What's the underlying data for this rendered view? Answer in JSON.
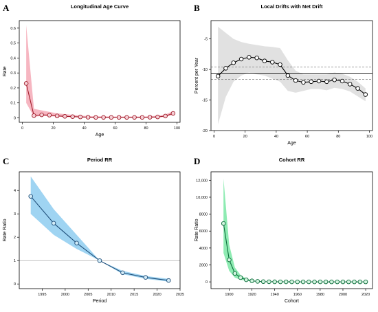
{
  "chart_data": [
    {
      "panel": "A",
      "type": "line",
      "title": "Longitudinal Age Curve",
      "xlabel": "Age",
      "ylabel": "Rate",
      "xlim": [
        -2,
        102
      ],
      "ylim": [
        -0.03,
        0.65
      ],
      "xticks": [
        0,
        20,
        40,
        60,
        80,
        100
      ],
      "yticks": [
        0.0,
        0.1,
        0.2,
        0.3,
        0.4,
        0.5,
        0.6
      ],
      "x": [
        2.5,
        7.5,
        12.5,
        17.5,
        22.5,
        27.5,
        32.5,
        37.5,
        42.5,
        47.5,
        52.5,
        57.5,
        62.5,
        67.5,
        72.5,
        77.5,
        82.5,
        87.5,
        92.5,
        97.5
      ],
      "y": [
        0.23,
        0.015,
        0.02,
        0.018,
        0.013,
        0.01,
        0.008,
        0.006,
        0.004,
        0.003,
        0.003,
        0.003,
        0.003,
        0.003,
        0.003,
        0.003,
        0.004,
        0.006,
        0.012,
        0.03
      ],
      "ci_low": [
        0.1,
        0.008,
        0.012,
        0.011,
        0.008,
        0.006,
        0.005,
        0.003,
        0.002,
        0.001,
        0.001,
        0.001,
        0.001,
        0.001,
        0.001,
        0.001,
        0.002,
        0.003,
        0.007,
        0.02
      ],
      "ci_high": [
        0.62,
        0.06,
        0.05,
        0.04,
        0.03,
        0.025,
        0.02,
        0.015,
        0.012,
        0.01,
        0.01,
        0.009,
        0.009,
        0.009,
        0.009,
        0.009,
        0.011,
        0.014,
        0.022,
        0.045
      ],
      "line_color": "#a01c2a",
      "band_color": "#f4a9b6",
      "marker_fill": "#f6d0d6"
    },
    {
      "panel": "B",
      "type": "line",
      "title": "Local Drifts with Net Drift",
      "xlabel": "Age",
      "ylabel": "Percent per Year",
      "xlim": [
        -2,
        102
      ],
      "ylim": [
        -20,
        -2
      ],
      "xticks": [
        0,
        20,
        40,
        60,
        80,
        100
      ],
      "yticks": [
        -20,
        -15,
        -10,
        -5
      ],
      "x": [
        2.5,
        7.5,
        12.5,
        17.5,
        22.5,
        27.5,
        32.5,
        37.5,
        42.5,
        47.5,
        52.5,
        57.5,
        62.5,
        67.5,
        72.5,
        77.5,
        82.5,
        87.5,
        92.5,
        97.5
      ],
      "y": [
        -11.1,
        -9.8,
        -8.9,
        -8.3,
        -8.0,
        -8.1,
        -8.6,
        -8.8,
        -9.2,
        -11.0,
        -11.8,
        -12.1,
        -12.0,
        -11.9,
        -12.0,
        -11.7,
        -11.9,
        -12.4,
        -13.1,
        -14.1
      ],
      "ci_low": [
        -19.0,
        -14.5,
        -12.0,
        -11.0,
        -10.5,
        -10.8,
        -11.0,
        -11.5,
        -12.0,
        -13.5,
        -13.8,
        -13.5,
        -13.2,
        -13.2,
        -13.4,
        -13.0,
        -13.2,
        -13.6,
        -14.4,
        -15.2
      ],
      "ci_high": [
        -3.0,
        -4.0,
        -5.0,
        -5.5,
        -5.8,
        -6.0,
        -6.2,
        -6.3,
        -6.5,
        -8.5,
        -10.2,
        -10.8,
        -10.8,
        -10.8,
        -10.8,
        -10.5,
        -10.7,
        -11.2,
        -12.0,
        -13.1
      ],
      "net_drift": -10.6,
      "net_drift_ci": [
        -11.6,
        -9.6
      ],
      "line_color": "#000000",
      "band_color": "#dcdcdc",
      "marker_fill": "#ffffff"
    },
    {
      "panel": "C",
      "type": "line",
      "title": "Period RR",
      "xlabel": "Period",
      "ylabel": "Rate Ratio",
      "xlim": [
        1990,
        2025
      ],
      "ylim": [
        -0.2,
        4.8
      ],
      "xticks": [
        1995,
        2000,
        2005,
        2010,
        2015,
        2020,
        2025
      ],
      "yticks": [
        0,
        1,
        2,
        3,
        4
      ],
      "x": [
        1992.5,
        1997.5,
        2002.5,
        2007.5,
        2012.5,
        2017.5,
        2022.5
      ],
      "y": [
        3.75,
        2.6,
        1.75,
        1.0,
        0.48,
        0.28,
        0.15
      ],
      "ci_low": [
        3.0,
        2.1,
        1.5,
        1.0,
        0.42,
        0.22,
        0.1
      ],
      "ci_high": [
        4.6,
        3.2,
        2.1,
        1.0,
        0.56,
        0.34,
        0.22
      ],
      "reference": 1,
      "line_color": "#1f4e79",
      "band_color": "#8ecdf0",
      "marker_fill": "#d4ecf8"
    },
    {
      "panel": "D",
      "type": "line",
      "title": "Cohort RR",
      "xlabel": "Cohort",
      "ylabel": "Rate Ratio",
      "xlim": [
        1884,
        2026
      ],
      "ylim": [
        -800,
        13000
      ],
      "xticks": [
        1900,
        1920,
        1940,
        1960,
        1980,
        2000,
        2020
      ],
      "yticks": [
        0,
        2000,
        4000,
        6000,
        8000,
        10000,
        12000
      ],
      "ytick_labels": [
        "0",
        "2000",
        "4000",
        "6000",
        "8000",
        "10,000",
        "12,000"
      ],
      "x": [
        1895,
        1900,
        1905,
        1910,
        1915,
        1920,
        1925,
        1930,
        1935,
        1940,
        1945,
        1950,
        1955,
        1960,
        1965,
        1970,
        1975,
        1980,
        1985,
        1990,
        1995,
        2000,
        2005,
        2010,
        2015,
        2020
      ],
      "y": [
        6900,
        2600,
        1000,
        500,
        250,
        120,
        60,
        30,
        15,
        8,
        5,
        3,
        2,
        1,
        1,
        1,
        1,
        1,
        0,
        0,
        0,
        0,
        0,
        0,
        0,
        0
      ],
      "ci_low": [
        3400,
        1300,
        500,
        250,
        130,
        60,
        30,
        15,
        8,
        4,
        3,
        2,
        1,
        1,
        1,
        1,
        1,
        1,
        0,
        0,
        0,
        0,
        0,
        0,
        0,
        0
      ],
      "ci_high": [
        12200,
        4400,
        1700,
        800,
        380,
        180,
        90,
        45,
        22,
        12,
        7,
        4,
        3,
        2,
        2,
        2,
        2,
        2,
        1,
        1,
        1,
        1,
        1,
        1,
        1,
        1
      ],
      "line_color": "#0b6b3a",
      "band_color": "#7ae8a4",
      "marker_fill": "#d2f5df"
    }
  ]
}
